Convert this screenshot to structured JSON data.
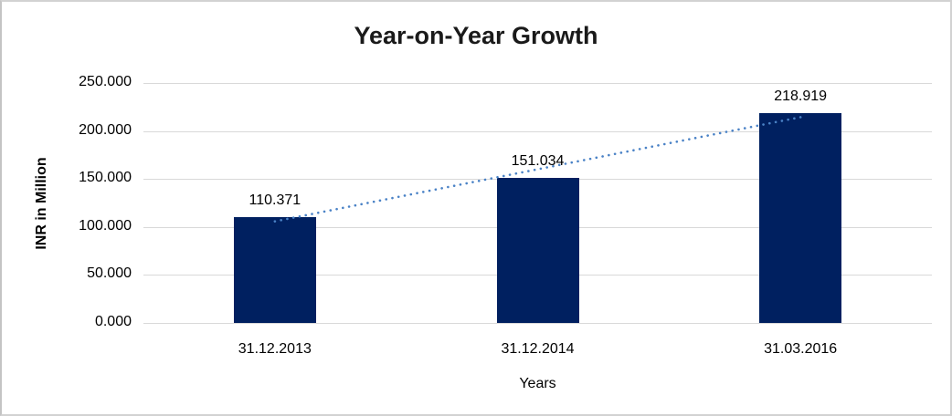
{
  "chart_data": {
    "type": "bar",
    "title": "Year-on-Year Growth",
    "xlabel": "Years",
    "ylabel": "INR in Million",
    "categories": [
      "31.12.2013",
      "31.12.2014",
      "31.03.2016"
    ],
    "values": [
      110.371,
      151.034,
      218.919
    ],
    "value_labels": [
      "110.371",
      "151.034",
      "218.919"
    ],
    "ylim": [
      0,
      250
    ],
    "ytick_step": 50,
    "ytick_labels": [
      "0.000",
      "50.000",
      "100.000",
      "150.000",
      "200.000",
      "250.000"
    ],
    "grid": "horizontal",
    "legend_position": "none",
    "trendline": {
      "type": "linear",
      "style": "dotted"
    },
    "colors": {
      "bar": "#002060",
      "trendline": "#4a82c6",
      "gridline": "#d9d9d9",
      "title_text": "#1a1a1a",
      "axis_text": "#000000",
      "background": "#ffffff"
    }
  }
}
